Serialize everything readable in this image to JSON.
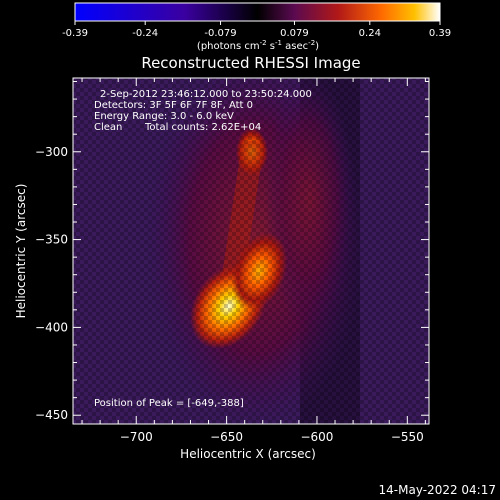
{
  "colorbar": {
    "ticks": [
      "-0.39",
      "-0.24",
      "-0.079",
      "0.079",
      "0.24",
      "0.39"
    ],
    "tick_values": [
      -0.39,
      -0.24,
      -0.079,
      0.079,
      0.24,
      0.39
    ],
    "units_main": "(photons cm",
    "units_sup1": "-2",
    "units_mid": " s",
    "units_sup2": "-1",
    "units_end": " asec",
    "units_sup3": "-2",
    "units_close": ")",
    "colors": [
      "#0000ff",
      "#3a00a0",
      "#000000",
      "#5a0a50",
      "#b01818",
      "#ff6a00",
      "#ffc000",
      "#ffffff"
    ]
  },
  "title": "Reconstructed RHESSI Image",
  "info": {
    "line1": "2-Sep-2012 23:46:12.000 to 23:50:24.000",
    "line2": "Detectors: 3F 5F 6F 7F 8F, Att 0",
    "line3": "Energy Range: 3.0 - 6.0 keV",
    "line4_a": "Clean",
    "line4_b": "Total counts: 2.62E+04"
  },
  "peak": "Position of Peak = [-649,-388]",
  "timestamp": "14-May-2022 04:17",
  "chart_data": {
    "type": "heatmap",
    "title": "Reconstructed RHESSI Image",
    "xlabel": "Heliocentric X (arcsec)",
    "ylabel": "Heliocentric Y (arcsec)",
    "xlim": [
      -735,
      -538
    ],
    "ylim": [
      -455,
      -258
    ],
    "xticks": [
      -700,
      -650,
      -600,
      -550
    ],
    "yticks": [
      -300,
      -350,
      -400,
      -450
    ],
    "xtick_labels": [
      "−700",
      "−650",
      "−600",
      "−550"
    ],
    "ytick_labels": [
      "−300",
      "−350",
      "−400",
      "−450"
    ],
    "zlim": [
      -0.39,
      0.39
    ],
    "sources": [
      {
        "x": -649,
        "y": -388,
        "value": 0.39
      },
      {
        "x": -632,
        "y": -368,
        "value": 0.3
      },
      {
        "x": -636,
        "y": -300,
        "value": 0.25
      }
    ]
  }
}
